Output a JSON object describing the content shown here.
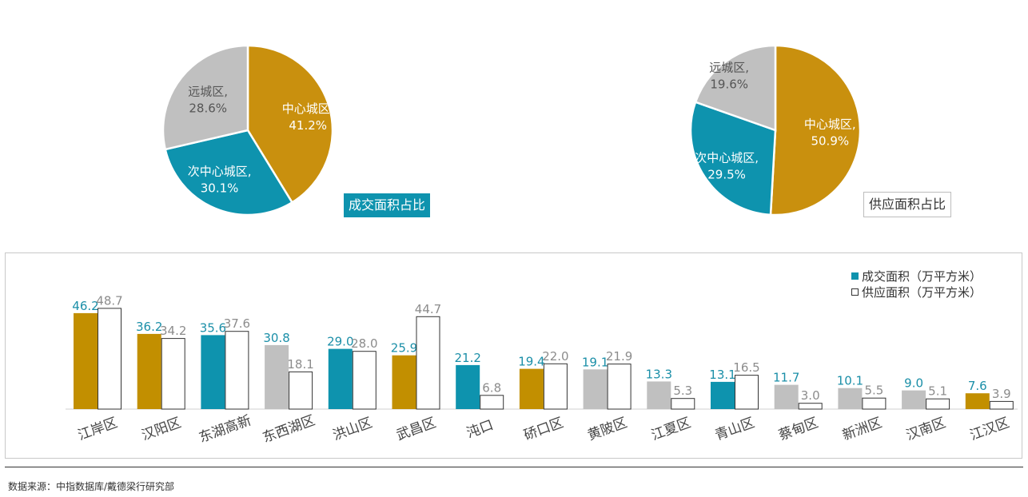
{
  "chart_data": [
    {
      "type": "pie",
      "title": "成交面积占比",
      "slices": [
        {
          "label": "中心城区,",
          "value": 41.2,
          "value_label": "41.2%",
          "color": "#c9900e"
        },
        {
          "label": "次中心城区,",
          "value": 30.1,
          "value_label": "30.1%",
          "color": "#0e93ae"
        },
        {
          "label": "远城区,",
          "value": 28.6,
          "value_label": "28.6%",
          "color": "#c0c0c0"
        }
      ]
    },
    {
      "type": "pie",
      "title": "供应面积占比",
      "slices": [
        {
          "label": "中心城区,",
          "value": 50.9,
          "value_label": "50.9%",
          "color": "#c9900e"
        },
        {
          "label": "次中心城区,",
          "value": 29.5,
          "value_label": "29.5%",
          "color": "#0e93ae"
        },
        {
          "label": "远城区,",
          "value": 19.6,
          "value_label": "19.6%",
          "color": "#c0c0c0"
        }
      ]
    },
    {
      "type": "bar",
      "categories": [
        "江岸区",
        "汉阳区",
        "东湖高新",
        "东西湖区",
        "洪山区",
        "武昌区",
        "沌口",
        "硚口区",
        "黄陂区",
        "江夏区",
        "青山区",
        "蔡甸区",
        "新洲区",
        "汉南区",
        "江汉区"
      ],
      "series": [
        {
          "name": "成交面积（万平方米）",
          "values": [
            46.2,
            36.2,
            35.6,
            30.8,
            29.0,
            25.9,
            21.2,
            19.4,
            19.1,
            13.3,
            13.1,
            11.7,
            10.1,
            9.0,
            7.6
          ],
          "bar_colors": [
            "#c28f00",
            "#c28f00",
            "#0e93ae",
            "#c0c0c0",
            "#0e93ae",
            "#c28f00",
            "#0e93ae",
            "#c28f00",
            "#c0c0c0",
            "#c0c0c0",
            "#0e93ae",
            "#c0c0c0",
            "#c0c0c0",
            "#c0c0c0",
            "#c28f00"
          ],
          "label_color": "#1b8fa8",
          "legend_color": "#0e93ae"
        },
        {
          "name": "供应面积（万平方米）",
          "values": [
            48.7,
            34.2,
            37.6,
            18.1,
            28.0,
            44.7,
            6.8,
            22.0,
            21.9,
            5.3,
            16.5,
            3.0,
            5.5,
            5.1,
            3.9
          ],
          "bar_color": "#ffffff",
          "bar_border": "#333333",
          "label_color": "#8c8c8c",
          "legend_color": "#ffffff"
        }
      ],
      "ylim": [
        0,
        50
      ],
      "legend": "top-right",
      "grid": false
    }
  ],
  "footer": {
    "source": "数据来源：中指数据库/戴德梁行研究部"
  }
}
